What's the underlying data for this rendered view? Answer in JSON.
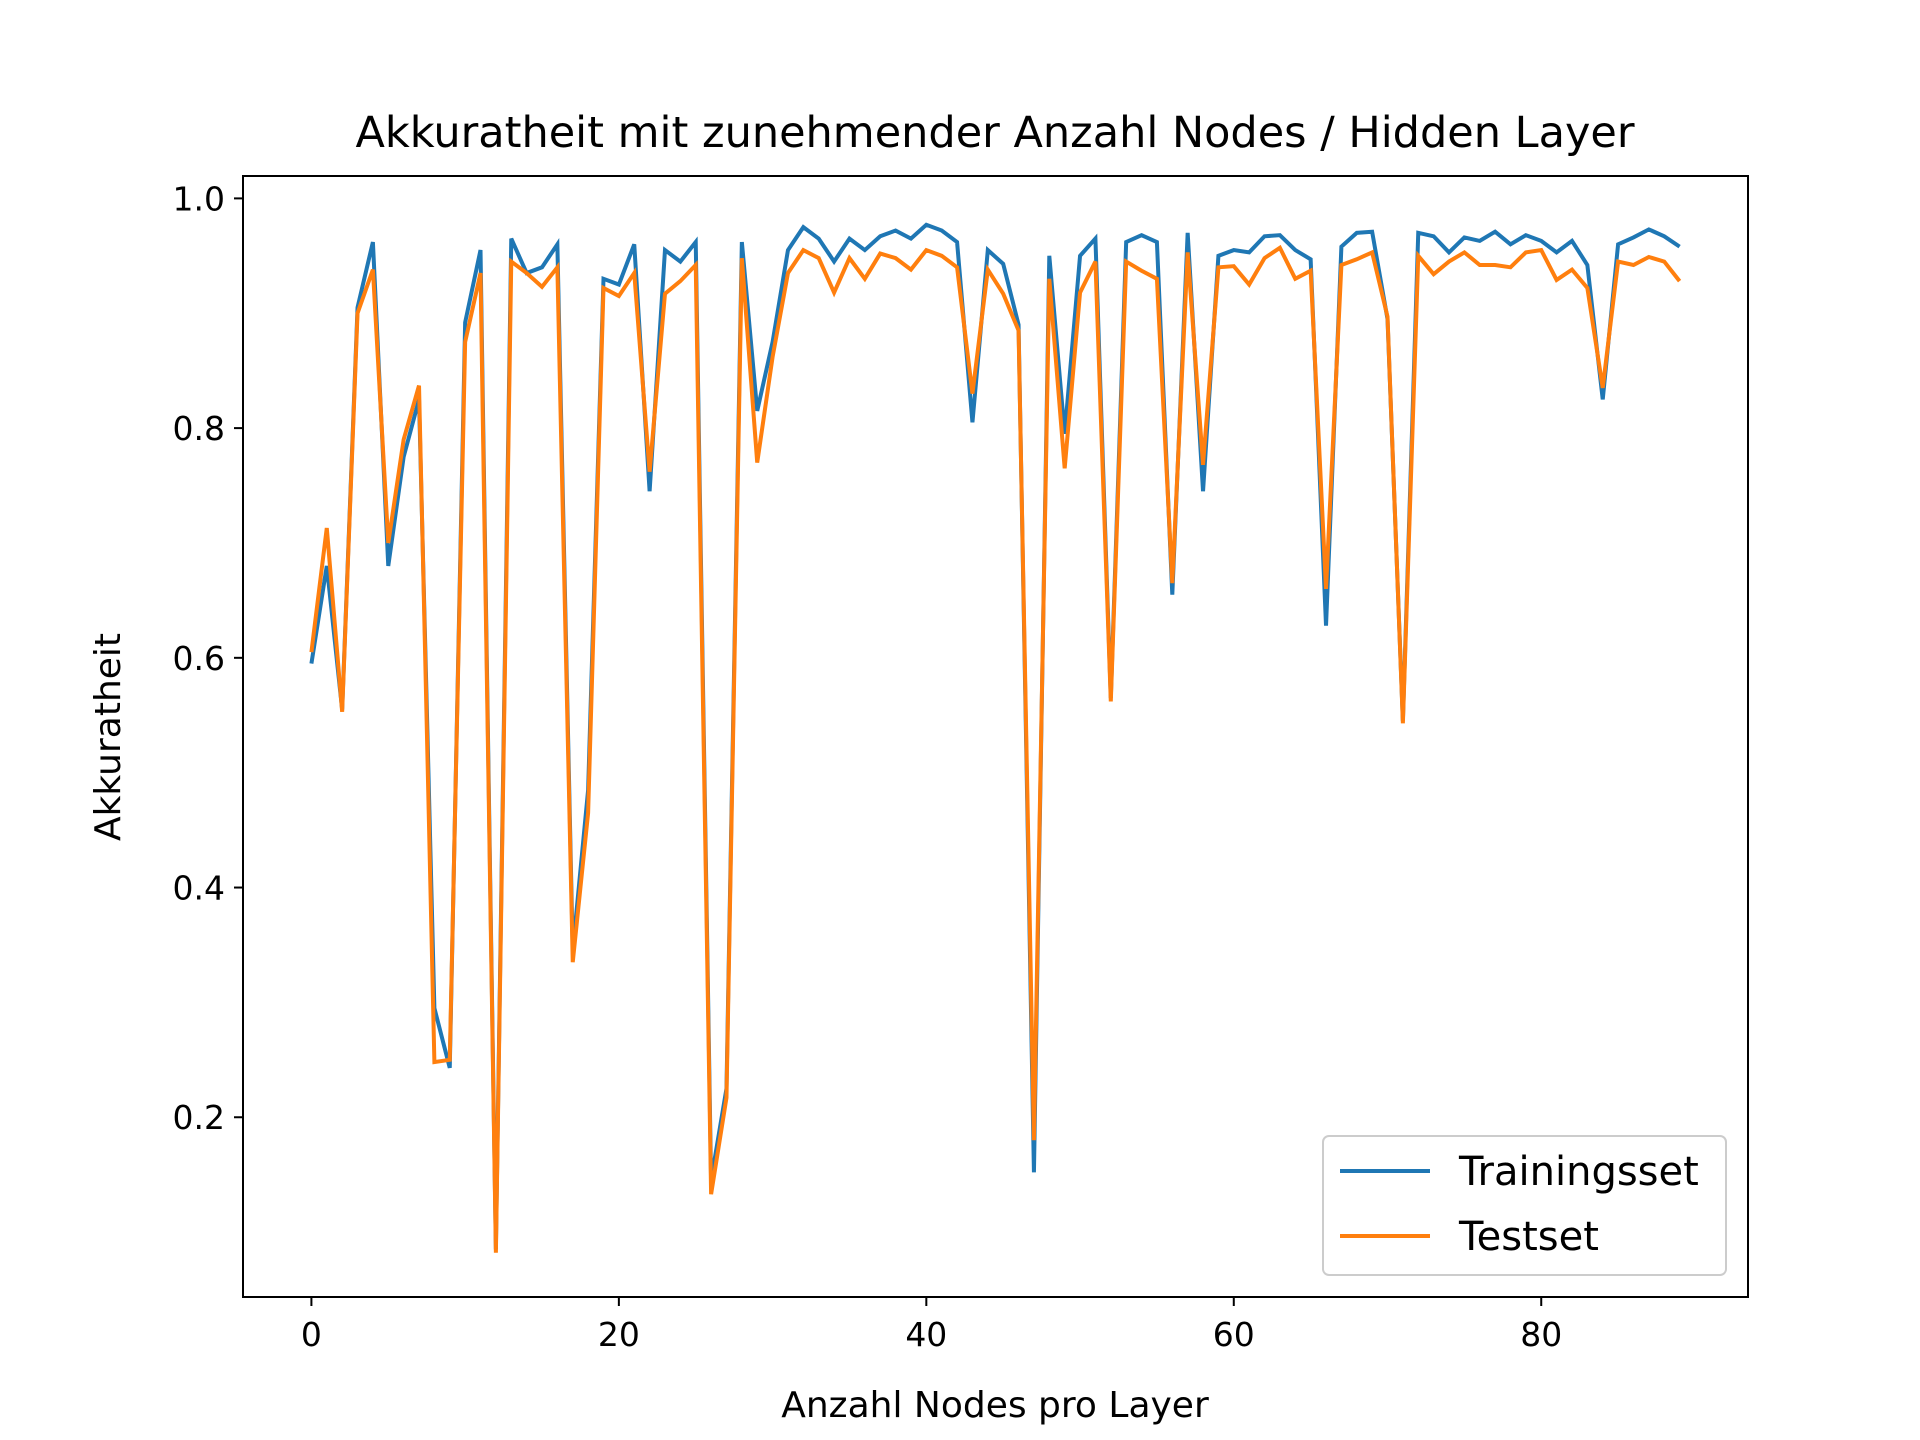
{
  "chart_data": {
    "type": "line",
    "title": "Akkuratheit mit zunehmender Anzahl Nodes / Hidden Layer",
    "xlabel": "Anzahl Nodes pro Layer",
    "ylabel": "Akkuratheit",
    "xlim": [
      -4.45,
      93.45
    ],
    "ylim": [
      0.0435,
      1.0195
    ],
    "xticks": [
      0,
      20,
      40,
      60,
      80
    ],
    "xtick_labels": [
      "0",
      "20",
      "40",
      "60",
      "80"
    ],
    "yticks": [
      0.2,
      0.4,
      0.6,
      0.8,
      1.0
    ],
    "ytick_labels": [
      "0.2",
      "0.4",
      "0.6",
      "0.8",
      "1.0"
    ],
    "grid": false,
    "legend_position": "lower-right",
    "x": [
      0,
      1,
      2,
      3,
      4,
      5,
      6,
      7,
      8,
      9,
      10,
      11,
      12,
      13,
      14,
      15,
      16,
      17,
      18,
      19,
      20,
      21,
      22,
      23,
      24,
      25,
      26,
      27,
      28,
      29,
      30,
      31,
      32,
      33,
      34,
      35,
      36,
      37,
      38,
      39,
      40,
      41,
      42,
      43,
      44,
      45,
      46,
      47,
      48,
      49,
      50,
      51,
      52,
      53,
      54,
      55,
      56,
      57,
      58,
      59,
      60,
      61,
      62,
      63,
      64,
      65,
      66,
      67,
      68,
      69,
      70,
      71,
      72,
      73,
      74,
      75,
      76,
      77,
      78,
      79,
      80,
      81,
      82,
      83,
      84,
      85,
      86,
      87,
      88,
      89
    ],
    "series": [
      {
        "name": "Trainingsset",
        "color": "#1f77b4",
        "values": [
          0.595,
          0.68,
          0.555,
          0.905,
          0.962,
          0.68,
          0.775,
          0.825,
          0.295,
          0.243,
          0.892,
          0.955,
          0.085,
          0.965,
          0.935,
          0.94,
          0.96,
          0.345,
          0.485,
          0.93,
          0.925,
          0.96,
          0.745,
          0.955,
          0.945,
          0.962,
          0.145,
          0.225,
          0.962,
          0.815,
          0.875,
          0.955,
          0.975,
          0.965,
          0.945,
          0.965,
          0.955,
          0.967,
          0.972,
          0.965,
          0.977,
          0.972,
          0.962,
          0.805,
          0.955,
          0.943,
          0.89,
          0.152,
          0.95,
          0.795,
          0.95,
          0.965,
          0.565,
          0.962,
          0.968,
          0.962,
          0.655,
          0.97,
          0.745,
          0.95,
          0.955,
          0.953,
          0.967,
          0.968,
          0.955,
          0.947,
          0.628,
          0.958,
          0.97,
          0.971,
          0.895,
          0.545,
          0.97,
          0.967,
          0.953,
          0.966,
          0.963,
          0.971,
          0.96,
          0.968,
          0.963,
          0.953,
          0.963,
          0.942,
          0.825,
          0.96,
          0.966,
          0.973,
          0.967,
          0.958
        ]
      },
      {
        "name": "Testset",
        "color": "#ff7f0e",
        "values": [
          0.605,
          0.713,
          0.553,
          0.9,
          0.938,
          0.7,
          0.79,
          0.837,
          0.248,
          0.25,
          0.875,
          0.935,
          0.082,
          0.945,
          0.935,
          0.923,
          0.94,
          0.335,
          0.465,
          0.922,
          0.915,
          0.935,
          0.762,
          0.917,
          0.928,
          0.942,
          0.133,
          0.217,
          0.948,
          0.77,
          0.862,
          0.935,
          0.955,
          0.948,
          0.918,
          0.948,
          0.93,
          0.952,
          0.948,
          0.938,
          0.955,
          0.95,
          0.94,
          0.83,
          0.938,
          0.917,
          0.885,
          0.18,
          0.93,
          0.765,
          0.918,
          0.945,
          0.562,
          0.945,
          0.937,
          0.93,
          0.665,
          0.953,
          0.768,
          0.94,
          0.941,
          0.925,
          0.948,
          0.957,
          0.93,
          0.937,
          0.66,
          0.942,
          0.947,
          0.953,
          0.897,
          0.543,
          0.95,
          0.934,
          0.945,
          0.953,
          0.942,
          0.942,
          0.94,
          0.953,
          0.955,
          0.929,
          0.938,
          0.922,
          0.835,
          0.945,
          0.942,
          0.949,
          0.945,
          0.928
        ]
      }
    ]
  }
}
